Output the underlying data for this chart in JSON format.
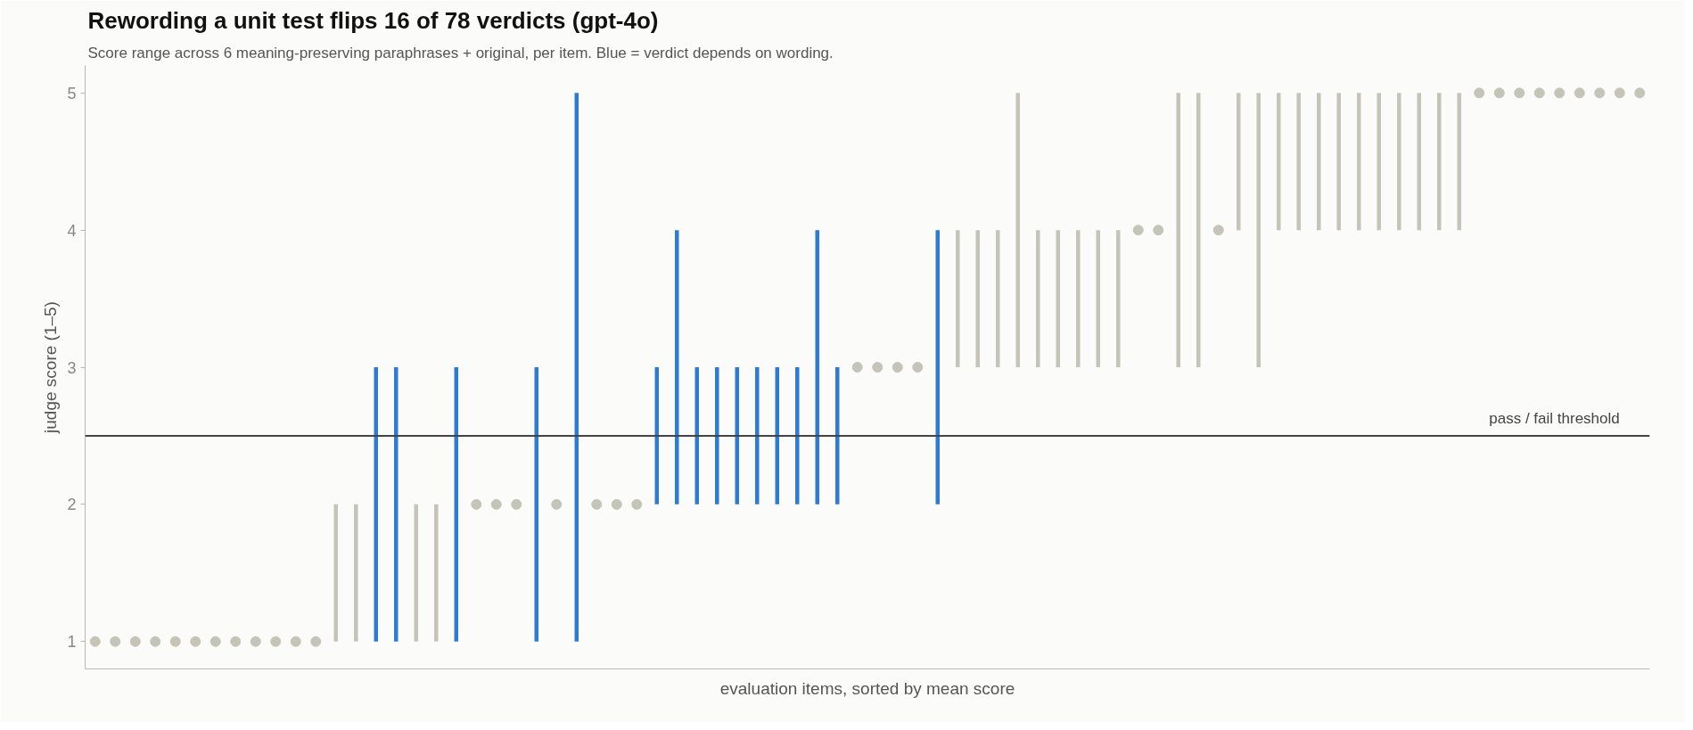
{
  "chart_data": {
    "type": "bar",
    "title": "Rewording a unit test flips 16 of 78 verdicts (gpt-4o)",
    "subtitle": "Score range across 6 meaning-preserving paraphrases + original, per item. Blue = verdict depends on wording.",
    "xlabel": "evaluation items, sorted by mean score",
    "ylabel": "judge score (1–5)",
    "categories": [
      null,
      null,
      null,
      null,
      null,
      null,
      null,
      null,
      null,
      null,
      null,
      null,
      null,
      null,
      null,
      null,
      null,
      null,
      null,
      null,
      null,
      null,
      null,
      null,
      null,
      null,
      null,
      null,
      null,
      null,
      null,
      null,
      null,
      null,
      null,
      null,
      null,
      null,
      null,
      null,
      null,
      null,
      null,
      null,
      null,
      null,
      null,
      null,
      null,
      null,
      null,
      null,
      null,
      null,
      null,
      null,
      null,
      null,
      null,
      null,
      null,
      null,
      null,
      null,
      null,
      null,
      null,
      null,
      null,
      null,
      null,
      null,
      null,
      null,
      null,
      null,
      null,
      null
    ],
    "series": [
      {
        "base": [
          null,
          null,
          null,
          null,
          null,
          null,
          null,
          null,
          null,
          null,
          null,
          null,
          1,
          1,
          1,
          1,
          1,
          1,
          1,
          null,
          null,
          null,
          1,
          null,
          1,
          null,
          null,
          null,
          2,
          2,
          2,
          2,
          2,
          2,
          2,
          2,
          2,
          2,
          null,
          null,
          null,
          null,
          2,
          3,
          3,
          3,
          3,
          3,
          3,
          3,
          3,
          3,
          null,
          null,
          3,
          3,
          null,
          4,
          3,
          4,
          4,
          4,
          4,
          4,
          4,
          4,
          4,
          4,
          4,
          null,
          null,
          null,
          null,
          null,
          null,
          null,
          null,
          null
        ],
        "values": [
          null,
          null,
          null,
          null,
          null,
          null,
          null,
          null,
          null,
          null,
          null,
          null,
          1,
          1,
          2,
          2,
          1,
          1,
          2,
          null,
          null,
          null,
          2,
          null,
          4,
          null,
          null,
          null,
          1,
          2,
          1,
          1,
          1,
          1,
          1,
          1,
          2,
          1,
          null,
          null,
          null,
          null,
          2,
          1,
          1,
          1,
          2,
          1,
          1,
          1,
          1,
          1,
          null,
          null,
          2,
          2,
          null,
          1,
          2,
          1,
          1,
          1,
          1,
          1,
          1,
          1,
          1,
          1,
          1,
          null,
          null,
          null,
          null,
          null,
          null,
          null,
          null,
          null
        ],
        "colors": [
          "#c4c4b8",
          "#c4c4b8",
          "#c4c4b8",
          "#c4c4b8",
          "#c4c4b8",
          "#c4c4b8",
          "#c4c4b8",
          "#c4c4b8",
          "#c4c4b8",
          "#c4c4b8",
          "#c4c4b8",
          "#c4c4b8",
          "#c4c4b8",
          "#c4c4b8",
          "#2e7bd6",
          "#2e7bd6",
          "#c4c4b8",
          "#c4c4b8",
          "#2e7bd6",
          "#c4c4b8",
          "#c4c4b8",
          "#c4c4b8",
          "#2e7bd6",
          "#c4c4b8",
          "#2e7bd6",
          "#c4c4b8",
          "#c4c4b8",
          "#c4c4b8",
          "#2e7bd6",
          "#2e7bd6",
          "#2e7bd6",
          "#2e7bd6",
          "#2e7bd6",
          "#2e7bd6",
          "#2e7bd6",
          "#2e7bd6",
          "#2e7bd6",
          "#2e7bd6",
          "#c4c4b8",
          "#c4c4b8",
          "#c4c4b8",
          "#c4c4b8",
          "#2e7bd6",
          "#c4c4b8",
          "#c4c4b8",
          "#c4c4b8",
          "#c4c4b8",
          "#c4c4b8",
          "#c4c4b8",
          "#c4c4b8",
          "#c4c4b8",
          "#c4c4b8",
          "#c4c4b8",
          "#c4c4b8",
          "#c4c4b8",
          "#c4c4b8",
          "#c4c4b8",
          "#c4c4b8",
          "#c4c4b8",
          "#c4c4b8",
          "#c4c4b8",
          "#c4c4b8",
          "#c4c4b8",
          "#c4c4b8",
          "#c4c4b8",
          "#c4c4b8",
          "#c4c4b8",
          "#c4c4b8",
          "#c4c4b8",
          "#c4c4b8",
          "#c4c4b8",
          "#c4c4b8",
          "#c4c4b8",
          "#c4c4b8",
          "#c4c4b8",
          "#c4c4b8",
          "#c4c4b8",
          "#c4c4b8"
        ]
      },
      {
        "type": "scatter",
        "color": "#c4c4b8",
        "marker": "circle",
        "values": [
          1,
          1,
          1,
          1,
          1,
          1,
          1,
          1,
          1,
          1,
          1,
          1,
          null,
          null,
          null,
          null,
          null,
          null,
          null,
          2,
          2,
          2,
          null,
          2,
          null,
          2,
          2,
          2,
          null,
          null,
          null,
          null,
          null,
          null,
          null,
          null,
          null,
          null,
          3,
          3,
          3,
          3,
          null,
          null,
          null,
          null,
          null,
          null,
          null,
          null,
          null,
          null,
          4,
          4,
          null,
          null,
          4,
          null,
          null,
          null,
          null,
          null,
          null,
          null,
          null,
          null,
          null,
          null,
          null,
          5,
          5,
          5,
          5,
          5,
          5,
          5,
          5,
          5
        ]
      }
    ],
    "ylim": [
      0.8,
      5.2
    ],
    "yticks": [
      1,
      2,
      3,
      4,
      5
    ],
    "ref_lines": [
      {
        "axis": "y",
        "value": 2.5,
        "label": "pass / fail threshold",
        "color": "#444444"
      }
    ]
  }
}
